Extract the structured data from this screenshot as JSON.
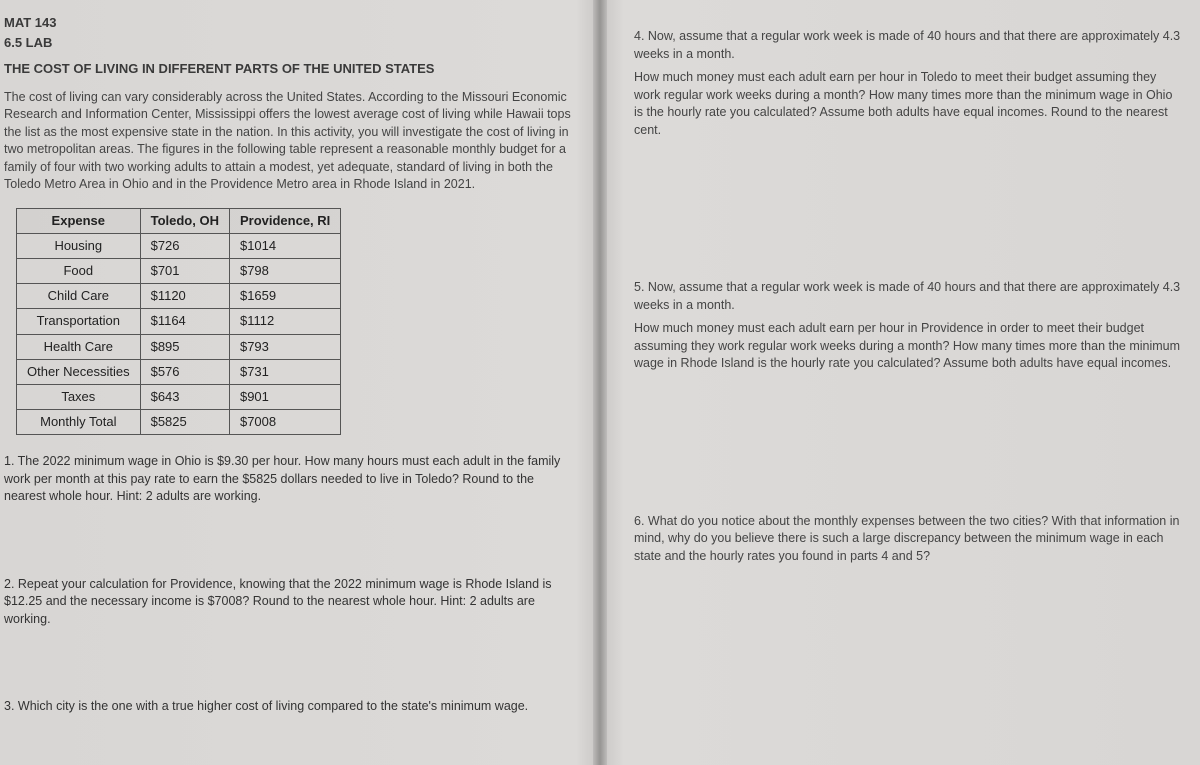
{
  "header": {
    "course": "MAT 143",
    "lab": "6.5 LAB",
    "title": "THE COST OF LIVING IN DIFFERENT PARTS OF THE UNITED STATES"
  },
  "intro": "The cost of living can vary considerably across the United States. According to the Missouri Economic Research and Information Center, Mississippi offers the lowest average cost of living while Hawaii tops the list as the most expensive state in the nation. In this activity, you will investigate the cost of living in two metropolitan areas. The figures in the following table represent a reasonable monthly budget for a family of four with two working adults to attain a modest, yet adequate, standard of living in both the Toledo Metro Area in Ohio and in the Providence Metro area in Rhode Island in 2021.",
  "table": {
    "columns": [
      "Expense",
      "Toledo, OH",
      "Providence, RI"
    ],
    "rows": [
      [
        "Housing",
        "$726",
        "$1014"
      ],
      [
        "Food",
        "$701",
        "$798"
      ],
      [
        "Child Care",
        "$1120",
        "$1659"
      ],
      [
        "Transportation",
        "$1164",
        "$1112"
      ],
      [
        "Health Care",
        "$895",
        "$793"
      ],
      [
        "Other Necessities",
        "$576",
        "$731"
      ],
      [
        "Taxes",
        "$643",
        "$901"
      ],
      [
        "Monthly Total",
        "$5825",
        "$7008"
      ]
    ],
    "border_color": "#555555",
    "header_fontweight": "bold",
    "fontsize": 13
  },
  "questions_left": {
    "q1": "1. The 2022 minimum wage in Ohio is $9.30 per hour. How many hours must each adult in the family work per month at this pay rate to earn the $5825 dollars needed to live in Toledo? Round to the nearest whole hour. Hint: 2 adults are working.",
    "q2": "2. Repeat your calculation for Providence, knowing that the 2022 minimum wage is Rhode Island is $12.25 and the necessary income is $7008? Round to the nearest whole hour. Hint: 2 adults are working.",
    "q3": "3. Which city is the one with a true higher cost of living compared to the state's minimum wage."
  },
  "questions_right": {
    "q4a": "4.  Now, assume that a regular work week is made of 40 hours and that there are approximately 4.3 weeks in a month.",
    "q4b": "How much money must each adult earn per hour in Toledo to meet their budget assuming they work regular work weeks during a month? How many times more than the minimum wage in Ohio is the hourly rate you calculated? Assume both adults have equal incomes. Round to the nearest cent.",
    "q5a": "5.  Now, assume that a regular work week is made of 40 hours and that there are approximately 4.3 weeks in a month.",
    "q5b": "How much money must each adult earn per hour in Providence in order to meet their budget assuming they work regular work weeks during a month? How many times more than the minimum wage in Rhode Island is the hourly rate you calculated? Assume both adults have equal incomes.",
    "q6": "6. What do you notice about the monthly expenses between the two cities? With that information in mind, why do you believe there is such a large discrepancy between the minimum wage in each state and the hourly rates you found in parts 4 and 5?"
  },
  "colors": {
    "page_bg": "#d8d6d4",
    "text": "#333333",
    "fold_shadow": "rgba(0,0,0,0.25)"
  }
}
